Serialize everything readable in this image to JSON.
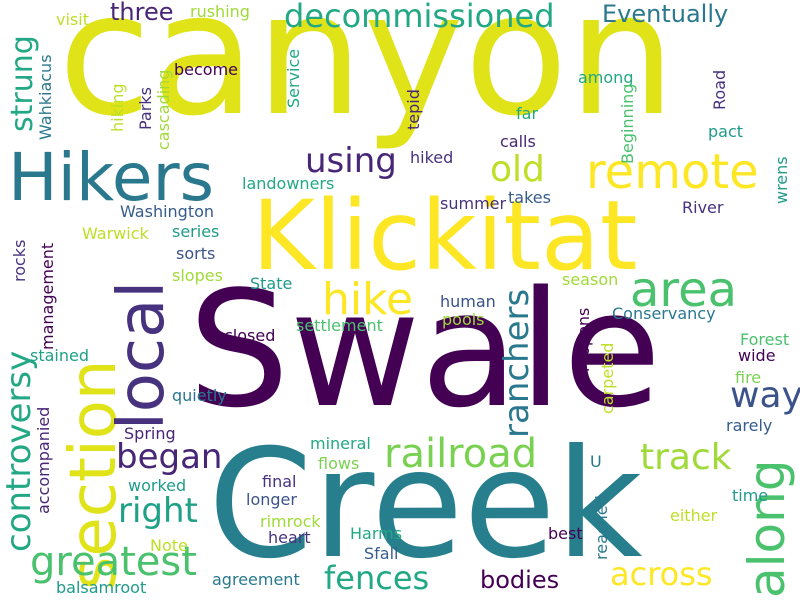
{
  "words": {
    "canyon": "canyon",
    "swale": "Swale",
    "creek": "Creek",
    "klickitat": "Klickitat",
    "hikers": "Hikers",
    "section": "section",
    "local": "local",
    "remote": "remote",
    "area": "area",
    "hike": "hike",
    "along": "along",
    "controversy": "controversy",
    "greatest": "greatest",
    "railroad": "railroad",
    "ranchers": "ranchers",
    "decommissioned": "decommissioned",
    "using": "using",
    "track": "track",
    "right": "right",
    "began": "began",
    "way": "way",
    "fences": "fences",
    "across": "across",
    "old": "old",
    "strung": "strung",
    "three": "three",
    "eventually": "Eventually",
    "bodies": "bodies",
    "wahkiacus": "Wahkiacus",
    "visit": "visit",
    "rushing": "rushing",
    "become": "become",
    "cascading": "cascading",
    "parks": "Parks",
    "service": "Service",
    "hiking": "hiking",
    "tepid": "tepid",
    "among": "among",
    "road": "Road",
    "far": "far",
    "beginning": "Beginning",
    "pact": "pact",
    "calls": "calls",
    "hiked": "hiked",
    "wrens": "wrens",
    "landowners": "landowners",
    "washington": "Washington",
    "takes": "takes",
    "summer": "summer",
    "warwick": "Warwick",
    "series": "series",
    "river": "River",
    "sorts": "sorts",
    "rocks": "rocks",
    "management": "management",
    "slopes": "slopes",
    "state": "State",
    "human": "human",
    "season": "season",
    "pools": "pools",
    "conservancy": "Conservancy",
    "settlement": "settlement",
    "closed": "closed",
    "stained": "stained",
    "reopens": "reopens",
    "carpeted": "carpeted",
    "forest": "Forest",
    "wide": "wide",
    "quietly": "quietly",
    "fire": "fire",
    "accompanied": "accompanied",
    "spring": "Spring",
    "rarely": "rarely",
    "mineral": "mineral",
    "flows": "flows",
    "u": "U",
    "worked": "worked",
    "final": "final",
    "longer": "longer",
    "time": "time",
    "rimrock": "rimrock",
    "either": "either",
    "harms": "Harms",
    "heart": "heart",
    "reached": "reached",
    "best": "best",
    "note": "Note",
    "sfall": "Sfall",
    "agreement": "agreement",
    "balsamroot": "balsamroot"
  }
}
